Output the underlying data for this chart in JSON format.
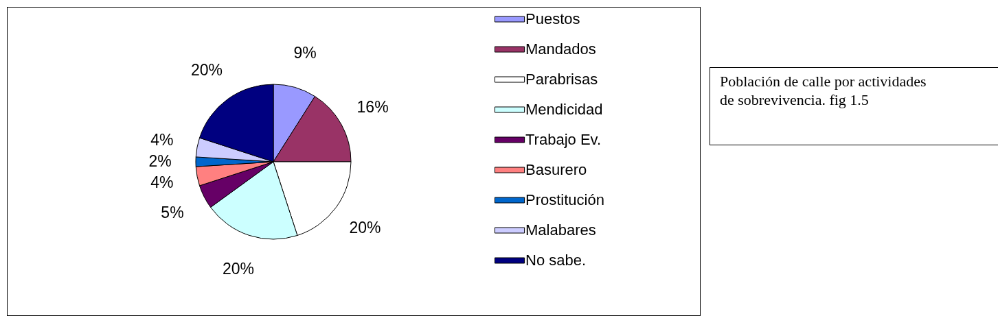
{
  "chart_data": {
    "type": "pie",
    "title": "Población de calle por actividades de sobrevivencia. fig 1.5",
    "categories": [
      "Puestos",
      "Mandados",
      "Parabrisas",
      "Mendicidad",
      "Trabajo Ev.",
      "Basurero",
      "Prostitución",
      "Malabares",
      "No sabe."
    ],
    "values": [
      9,
      16,
      20,
      20,
      5,
      4,
      2,
      4,
      20
    ],
    "value_labels": [
      "9%",
      "16%",
      "20%",
      "20%",
      "5%",
      "4%",
      "2%",
      "4%",
      "20%"
    ],
    "colors": [
      "#9999ff",
      "#993366",
      "#ffffff",
      "#ccffff",
      "#660066",
      "#ff8080",
      "#0066cc",
      "#ccccff",
      "#000080"
    ],
    "legend": "right"
  }
}
